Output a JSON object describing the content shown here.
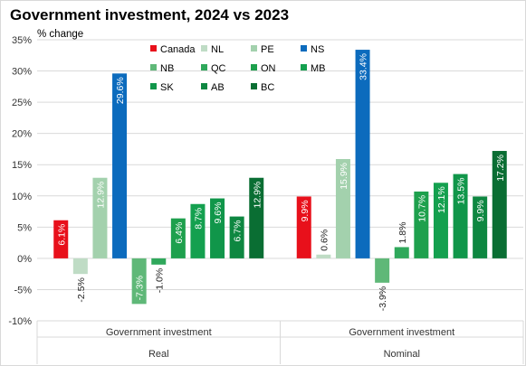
{
  "title": "Government investment, 2024 vs 2023",
  "subtitle": "% change",
  "chart_data": {
    "type": "bar",
    "title": "Government investment, 2024 vs 2023",
    "ylabel": "% change",
    "ylim": [
      -10,
      35
    ],
    "yticks": [
      "-10%",
      "-5%",
      "0%",
      "5%",
      "10%",
      "15%",
      "20%",
      "25%",
      "30%",
      "35%"
    ],
    "ytick_values": [
      -10,
      -5,
      0,
      5,
      10,
      15,
      20,
      25,
      30,
      35
    ],
    "grid": true,
    "legend_position": "top",
    "categories": [
      "Government investment|Real",
      "Government investment|Nominal"
    ],
    "category_labels": [
      {
        "inner": "Government investment",
        "outer": "Real"
      },
      {
        "inner": "Government investment",
        "outer": "Nominal"
      }
    ],
    "series": [
      {
        "name": "Canada",
        "color": "#e8101b",
        "values": [
          6.1,
          9.9
        ],
        "labels": [
          "6.1%",
          "9.9%"
        ]
      },
      {
        "name": "NL",
        "color": "#bfdcc5",
        "values": [
          -2.5,
          0.6
        ],
        "labels": [
          "-2.5%",
          "0.6%"
        ]
      },
      {
        "name": "PE",
        "color": "#a3d1ad",
        "values": [
          12.9,
          15.9
        ],
        "labels": [
          "12.9%",
          "15.9%"
        ]
      },
      {
        "name": "NS",
        "color": "#0c6bbd",
        "values": [
          29.6,
          33.4
        ],
        "labels": [
          "29.6%",
          "33.4%"
        ]
      },
      {
        "name": "NB",
        "color": "#5fb878",
        "values": [
          -7.3,
          -3.9
        ],
        "labels": [
          "-7.3%",
          "-3.9%"
        ]
      },
      {
        "name": "QC",
        "color": "#2fa85b",
        "values": [
          -1.0,
          1.8
        ],
        "labels": [
          "-1.0%",
          "1.8%"
        ]
      },
      {
        "name": "ON",
        "color": "#1ea04d",
        "values": [
          6.4,
          10.7
        ],
        "labels": [
          "6.4%",
          "10.7%"
        ]
      },
      {
        "name": "MB",
        "color": "#14a04f",
        "values": [
          8.7,
          12.1
        ],
        "labels": [
          "8.7%",
          "12.1%"
        ]
      },
      {
        "name": "SK",
        "color": "#10964a",
        "values": [
          9.6,
          13.5
        ],
        "labels": [
          "9.6%",
          "13.5%"
        ]
      },
      {
        "name": "AB",
        "color": "#0e8741",
        "values": [
          6.7,
          9.9
        ],
        "labels": [
          "6.7%",
          "9.9%"
        ]
      },
      {
        "name": "BC",
        "color": "#0a6e33",
        "values": [
          12.9,
          17.2
        ],
        "labels": [
          "12.9%",
          "17.2%"
        ]
      }
    ]
  }
}
